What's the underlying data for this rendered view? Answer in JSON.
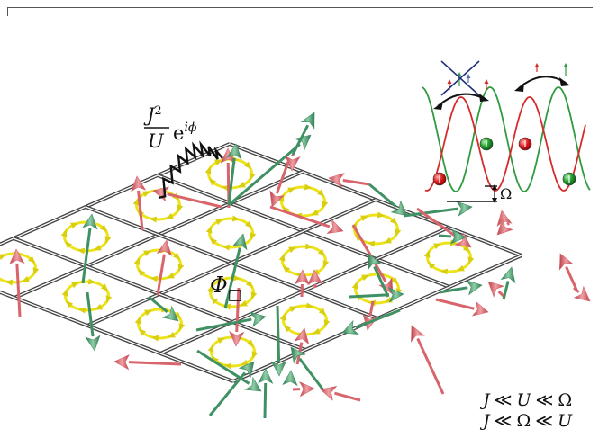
{
  "hopping_label": {
    "numerator": "J",
    "numerator_sup": "2",
    "denominator": "U",
    "exp_base": "e",
    "exp_power": "iϕ"
  },
  "plaquette_flux_label": {
    "symbol": "Φ",
    "subscript": "□"
  },
  "offset_label": "Ω",
  "regimes": [
    {
      "lhs": "J",
      "mid": "U",
      "rhs": "Ω"
    },
    {
      "lhs": "J",
      "mid": "Ω",
      "rhs": "U"
    }
  ],
  "regime_relation": "≪",
  "colors": {
    "red_lattice": "#d62a2a",
    "green_lattice": "#2f9a3e",
    "spin_red": "#d9646b",
    "spin_green": "#3f9163",
    "loop_yellow": "#ece31a",
    "grid": "#444444"
  },
  "icons": [
    "spin-arrow-icon",
    "current-loop-icon",
    "atom-ball-icon",
    "swap-arrow-icon",
    "wiggly-link-icon"
  ]
}
